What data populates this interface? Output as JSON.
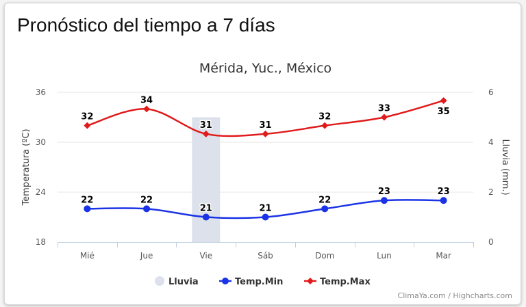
{
  "widget": {
    "title": "Pronóstico del tiempo a 7 días",
    "credits": "ClimaYa.com / Highcharts.com"
  },
  "chart_data": {
    "type": "line",
    "title": "Mérida, Yuc., México",
    "categories": [
      "Mié",
      "Jue",
      "Vie",
      "Sáb",
      "Dom",
      "Lun",
      "Mar"
    ],
    "y_left": {
      "label": "Temperatura (ºC)",
      "min": 18,
      "max": 36,
      "ticks": [
        18,
        24,
        30,
        36
      ]
    },
    "y_right": {
      "label": "Lluvia (mm.)",
      "min": 0,
      "max": 6,
      "ticks": [
        0,
        2,
        4,
        6
      ]
    },
    "grid": true,
    "legend_position": "bottom-center",
    "series": [
      {
        "name": "Lluvia",
        "type": "column",
        "axis": "right",
        "color": "#dde1ec",
        "values": [
          0,
          0,
          5,
          0,
          0,
          0,
          0
        ]
      },
      {
        "name": "Temp.Min",
        "type": "spline",
        "axis": "left",
        "color": "#1a33e6",
        "marker": "circle",
        "values": [
          22,
          22,
          21,
          21,
          22,
          23,
          23
        ]
      },
      {
        "name": "Temp.Max",
        "type": "spline",
        "axis": "left",
        "color": "#e01b1b",
        "marker": "diamond",
        "values": [
          32,
          34,
          31,
          31,
          32,
          33,
          35
        ]
      }
    ]
  }
}
